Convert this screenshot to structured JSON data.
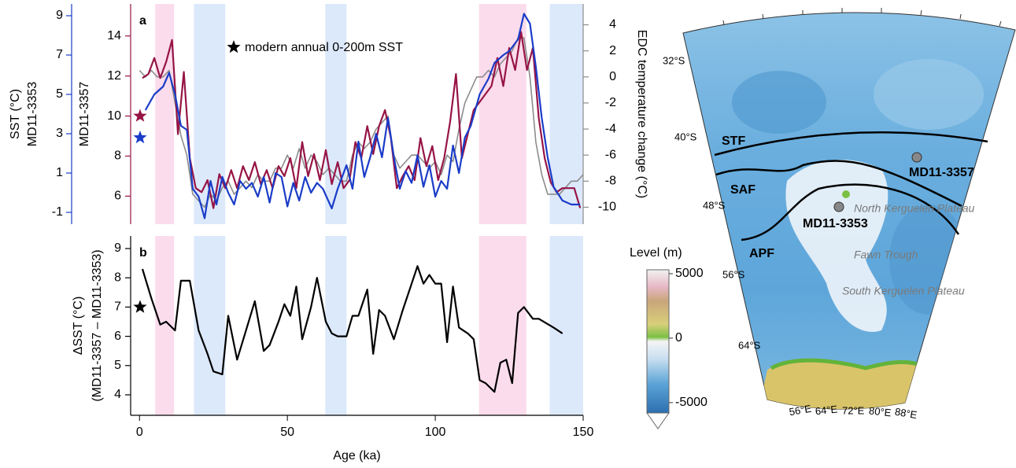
{
  "chart_data": [
    {
      "type": "line",
      "panel_label": "a",
      "annotation": "modern annual 0-200m SST",
      "xlim": [
        -3,
        150
      ],
      "shading": [
        {
          "from": 5.3,
          "to": 11.7,
          "color": "#fbdcec"
        },
        {
          "from": 18.4,
          "to": 29,
          "color": "#dce9fb"
        },
        {
          "from": 62.8,
          "to": 70,
          "color": "#dce9fb"
        },
        {
          "from": 114.8,
          "to": 130.8,
          "color": "#fbdcec"
        },
        {
          "from": 138.7,
          "to": 150,
          "color": "#dce9fb"
        }
      ],
      "axes": [
        {
          "title": "SST (°C)",
          "subtitle": "MD11-3353",
          "color": "#1a3cc8",
          "ylim": [
            -1.6,
            9.6
          ],
          "yticks": [
            -1,
            1,
            3,
            5,
            7,
            9
          ]
        },
        {
          "title": "MD11-3357",
          "color": "#961445",
          "ylim": [
            4.6,
            15.6
          ],
          "yticks": [
            6,
            8,
            10,
            12,
            14
          ]
        },
        {
          "title": "EDC temperature change (°C)",
          "color": "#8c8c8c",
          "ylim": [
            -11.3,
            5.6
          ],
          "yticks": [
            -10,
            -8,
            -6,
            -4,
            -2,
            0,
            2,
            4
          ]
        }
      ],
      "series": [
        {
          "axis": 2,
          "color": "#8c8c8c",
          "x": [
            0,
            2,
            4,
            6,
            8,
            10,
            12,
            14,
            16,
            18,
            20,
            22,
            24,
            26,
            28,
            30,
            32,
            34,
            36,
            38,
            40,
            42,
            44,
            46,
            48,
            50,
            52,
            54,
            56,
            58,
            60,
            62,
            64,
            66,
            68,
            70,
            72,
            74,
            76,
            78,
            80,
            82,
            84,
            86,
            88,
            90,
            92,
            94,
            96,
            98,
            100,
            102,
            104,
            106,
            108,
            110,
            112,
            114,
            116,
            118,
            120,
            122,
            124,
            126,
            128,
            130,
            132,
            134,
            136,
            138,
            140,
            142,
            144,
            146,
            148,
            150
          ],
          "values": [
            0.5,
            0,
            0.5,
            0,
            0,
            0.5,
            -2,
            -4.5,
            -6,
            -9,
            -9.5,
            -10,
            -9,
            -9.5,
            -8.5,
            -8,
            -9,
            -8.5,
            -8,
            -8.5,
            -7.5,
            -8,
            -8,
            -7,
            -7,
            -6,
            -7,
            -5.5,
            -7,
            -6,
            -6.5,
            -7.5,
            -7,
            -7.5,
            -8,
            -8,
            -6,
            -5,
            -5.5,
            -5,
            -4,
            -3.5,
            -3,
            -6,
            -7,
            -6.5,
            -6,
            -6,
            -6.5,
            -7,
            -6.5,
            -7.5,
            -6,
            -6.5,
            -4,
            -2,
            -1,
            0,
            0,
            0.5,
            0,
            1,
            1.5,
            2,
            3,
            3,
            0,
            -5,
            -7.5,
            -9,
            -9,
            -9,
            -8.5,
            -8,
            -8,
            -7.5
          ]
        },
        {
          "axis": 1,
          "color": "#961445",
          "modern": 10.0,
          "x": [
            1,
            3,
            5,
            7,
            9,
            11,
            13,
            15,
            17,
            19,
            21,
            23,
            25,
            27,
            29,
            31,
            33,
            35,
            37,
            39,
            41,
            43,
            45,
            47,
            49,
            51,
            53,
            55,
            57,
            59,
            61,
            63,
            65,
            67,
            69,
            71,
            73,
            75,
            77,
            79,
            81,
            83,
            85,
            87,
            89,
            91,
            93,
            95,
            97,
            99,
            101,
            103,
            105,
            107,
            109,
            111,
            113,
            116,
            119,
            121,
            123,
            125,
            127,
            129,
            131,
            133,
            135,
            137,
            139,
            141,
            143,
            145,
            147,
            149
          ],
          "values": [
            11.9,
            12.1,
            12.9,
            11.9,
            12.7,
            13.8,
            9.1,
            12.2,
            7.9,
            6.4,
            6.2,
            6.8,
            5.4,
            7.1,
            6.4,
            7.3,
            6.4,
            7.5,
            6.8,
            7.7,
            6.6,
            7.3,
            6.4,
            7.5,
            7.0,
            7.9,
            6.4,
            8.7,
            7.0,
            8.1,
            6.8,
            8.3,
            6.6,
            7.7,
            6.4,
            6.8,
            8.7,
            7.9,
            9.5,
            8.1,
            9.5,
            10.3,
            8.9,
            6.4,
            7.0,
            7.5,
            6.8,
            8.9,
            7.5,
            8.5,
            6.8,
            7.9,
            9.7,
            12.1,
            7.9,
            9.1,
            10.3,
            10.9,
            11.5,
            12.9,
            11.5,
            13.4,
            12.3,
            14.2,
            12.3,
            13.4,
            9.9,
            7.9,
            6.7,
            6.2,
            6.4,
            6.4,
            6.4,
            5.4
          ]
        },
        {
          "axis": 0,
          "color": "#1a3cc8",
          "modern": 2.8,
          "x": [
            2,
            5,
            8,
            10,
            12,
            14,
            16,
            18,
            20,
            22,
            24,
            26,
            28,
            30,
            32,
            34,
            36,
            38,
            40,
            42,
            44,
            46,
            48,
            50,
            52,
            54,
            56,
            58,
            60,
            62,
            65,
            67,
            70,
            72,
            74,
            76,
            78,
            80,
            82,
            84,
            86,
            88,
            90,
            92,
            94,
            96,
            98,
            100,
            102,
            104,
            106,
            108,
            110,
            112,
            115,
            118,
            120,
            123,
            125,
            128,
            130,
            132,
            134,
            136,
            138,
            140,
            143,
            146,
            149
          ],
          "values": [
            4.2,
            5.0,
            5.4,
            6.1,
            5.0,
            3.4,
            3.2,
            0.2,
            -0.2,
            -1.3,
            0.6,
            -0.6,
            0.8,
            0.0,
            -0.6,
            0.6,
            0.2,
            0.5,
            -0.2,
            0.8,
            -0.5,
            1.0,
            0.8,
            -0.7,
            0.5,
            -0.4,
            0.8,
            0.0,
            0.5,
            0.2,
            -0.8,
            0.2,
            1.4,
            0.2,
            2.6,
            0.8,
            1.8,
            3.0,
            1.8,
            3.8,
            1.8,
            0.2,
            1.1,
            0.5,
            1.9,
            0.3,
            1.4,
            -0.2,
            0.6,
            0.2,
            2.4,
            1.0,
            2.8,
            3.4,
            5.0,
            5.8,
            6.6,
            7.0,
            7.2,
            7.8,
            9.1,
            8.6,
            6.4,
            3.8,
            1.8,
            0.3,
            -0.4,
            -0.6,
            -0.6
          ]
        }
      ]
    },
    {
      "type": "line",
      "panel_label": "b",
      "xlabel": "Age (ka)",
      "xlim": [
        -3,
        150
      ],
      "xticks": [
        0,
        50,
        100,
        150
      ],
      "shading": [
        {
          "from": 5.3,
          "to": 11.7,
          "color": "#fbdcec"
        },
        {
          "from": 18.4,
          "to": 29,
          "color": "#dce9fb"
        },
        {
          "from": 62.8,
          "to": 70,
          "color": "#dce9fb"
        },
        {
          "from": 114.8,
          "to": 130.8,
          "color": "#fbdcec"
        },
        {
          "from": 138.7,
          "to": 150,
          "color": "#dce9fb"
        }
      ],
      "axes": [
        {
          "title": "ΔSST (°C)",
          "subtitle": "(MD11-3357 – MD11-3353)",
          "color": "#000000",
          "ylim": [
            3.3,
            9.43
          ],
          "yticks": [
            4,
            5,
            6,
            7,
            8,
            9
          ]
        }
      ],
      "series": [
        {
          "axis": 0,
          "color": "#000000",
          "modern": 7.0,
          "x": [
            1,
            4,
            7,
            9,
            12,
            14,
            17,
            20,
            23,
            25,
            28,
            30,
            33,
            36,
            39,
            42,
            44,
            47,
            49,
            51,
            53,
            55,
            58,
            60,
            63,
            65,
            67,
            70,
            72,
            74,
            77,
            79,
            81,
            83,
            86,
            89,
            91,
            94,
            96,
            98,
            100,
            102,
            104,
            106,
            108,
            111,
            113,
            115,
            117,
            120,
            122,
            124,
            126,
            128,
            130,
            133,
            135,
            140,
            143
          ],
          "values": [
            8.3,
            7.3,
            6.4,
            6.5,
            6.2,
            7.9,
            7.9,
            6.2,
            5.4,
            4.8,
            4.7,
            6.7,
            5.2,
            6.2,
            7.2,
            5.5,
            5.7,
            6.5,
            7.1,
            6.7,
            7.7,
            5.9,
            7.0,
            8.0,
            6.5,
            6.1,
            6.0,
            6.0,
            6.7,
            6.7,
            7.6,
            5.4,
            6.9,
            6.7,
            5.9,
            6.9,
            7.5,
            8.4,
            7.8,
            8.1,
            7.8,
            7.8,
            5.8,
            7.7,
            6.3,
            6.1,
            5.9,
            4.5,
            4.4,
            4.1,
            5.1,
            5.2,
            4.4,
            6.8,
            7.0,
            6.6,
            6.6,
            6.3,
            6.1
          ]
        }
      ]
    }
  ],
  "map": {
    "fronts": [
      "STF",
      "SAF",
      "APF"
    ],
    "cores": [
      "MD11-3357",
      "MD11-3353"
    ],
    "features": [
      "North Kerguelen Plateau",
      "Fawn Trough",
      "South Kerguelen Plateau"
    ],
    "lat_labels": [
      "32°S",
      "40°S",
      "48°S",
      "56°S",
      "64°S"
    ],
    "lon_labels": [
      "56°E",
      "64°E",
      "72°E",
      "80°E",
      "88°E"
    ],
    "colorbar": {
      "title": "Level (m)",
      "lim": [
        -5800,
        5300
      ],
      "ticks": [
        5000,
        0,
        -5000
      ]
    }
  }
}
